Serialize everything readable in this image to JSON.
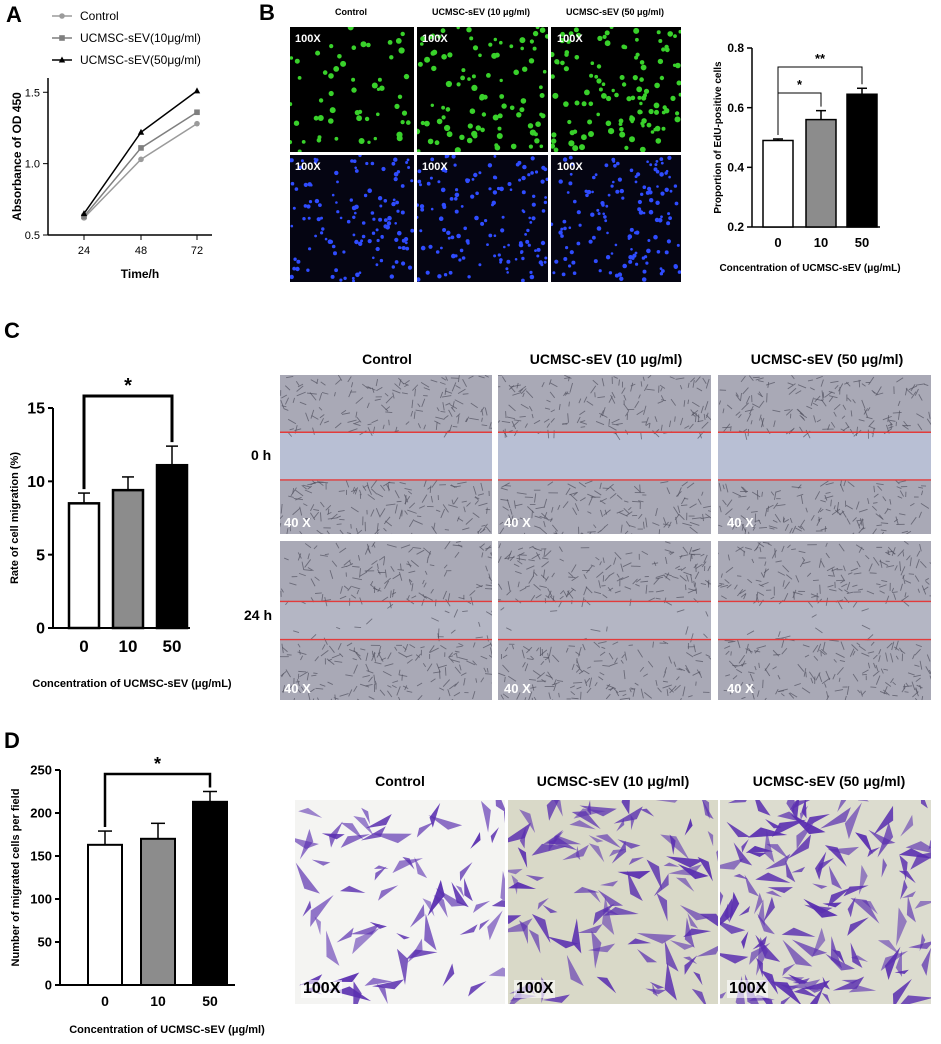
{
  "panels": {
    "A": "A",
    "B": "B",
    "C": "C",
    "D": "D"
  },
  "colors": {
    "black": "#000000",
    "gray_dark": "#7f7f7f",
    "gray_light": "#9b9b9b",
    "edu_green": "#39d12b",
    "dapi_blue": "#2f4cff",
    "crystal_violet": "#5a2fb0",
    "scratch_line": "#e23b3b"
  },
  "chart_data": [
    {
      "id": "A",
      "type": "line",
      "title": "",
      "xlabel": "Time/h",
      "ylabel": "Absorbance of OD 450",
      "x": [
        24,
        48,
        72
      ],
      "xticks": [
        "24",
        "48",
        "72"
      ],
      "ylim": [
        0.5,
        1.6
      ],
      "yticks": [
        "0.5",
        "1.0",
        "1.5"
      ],
      "legend_position": "top",
      "series": [
        {
          "name": "Control",
          "values": [
            0.62,
            1.03,
            1.28
          ],
          "marker": "circle",
          "color": "#9b9b9b"
        },
        {
          "name": "UCMSC-sEV(10μg/ml)",
          "values": [
            0.63,
            1.11,
            1.36
          ],
          "marker": "square",
          "color": "#7f7f7f"
        },
        {
          "name": "UCMSC-sEV(50μg/ml)",
          "values": [
            0.65,
            1.22,
            1.51
          ],
          "marker": "triangle",
          "color": "#000000"
        }
      ]
    },
    {
      "id": "B",
      "type": "bar",
      "title": "",
      "xlabel": "Concentration of UCMSC-sEV (μg/mL)",
      "ylabel": "Proportion of EdU-positive cells",
      "categories": [
        "0",
        "10",
        "50"
      ],
      "values": [
        0.49,
        0.56,
        0.645
      ],
      "errors": [
        0.005,
        0.03,
        0.02
      ],
      "bar_colors": [
        "#ffffff",
        "#8c8c8c",
        "#000000"
      ],
      "ylim": [
        0.2,
        0.8
      ],
      "yticks": [
        "0.2",
        "0.4",
        "0.6",
        "0.8"
      ],
      "significance": [
        {
          "from": 0,
          "to": 1,
          "label": "*"
        },
        {
          "from": 0,
          "to": 2,
          "label": "**"
        }
      ]
    },
    {
      "id": "C",
      "type": "bar",
      "title": "",
      "xlabel": "Concentration of UCMSC-sEV (μg/mL)",
      "ylabel": "Rate of cell migration (%)",
      "categories": [
        "0",
        "10",
        "50"
      ],
      "values": [
        8.5,
        9.4,
        11.1
      ],
      "errors": [
        0.7,
        0.9,
        1.3
      ],
      "bar_colors": [
        "#ffffff",
        "#8c8c8c",
        "#000000"
      ],
      "ylim": [
        0,
        15
      ],
      "yticks": [
        "0",
        "5",
        "10",
        "15"
      ],
      "significance": [
        {
          "from": 0,
          "to": 2,
          "label": "*"
        }
      ]
    },
    {
      "id": "D",
      "type": "bar",
      "title": "",
      "xlabel": "Concentration of UCMSC-sEV (μg/ml)",
      "ylabel": "Number of migrated cells per field",
      "categories": [
        "0",
        "10",
        "50"
      ],
      "values": [
        163,
        170,
        213
      ],
      "errors": [
        16,
        18,
        12
      ],
      "bar_colors": [
        "#ffffff",
        "#8c8c8c",
        "#000000"
      ],
      "ylim": [
        0,
        250
      ],
      "yticks": [
        "0",
        "50",
        "100",
        "150",
        "200",
        "250"
      ],
      "significance": [
        {
          "from": 0,
          "to": 2,
          "label": "*"
        }
      ]
    }
  ],
  "micrographs": {
    "B": {
      "headers": [
        "Control",
        "UCMSC-sEV (10 μg/ml)",
        "UCMSC-sEV (50 μg/ml)"
      ],
      "magnification": "100X"
    },
    "C": {
      "headers": [
        "Control",
        "UCMSC-sEV (10 μg/ml)",
        "UCMSC-sEV (50 μg/ml)"
      ],
      "rows": [
        "0 h",
        "24 h"
      ],
      "magnification": "40 X"
    },
    "D": {
      "headers": [
        "Control",
        "UCMSC-sEV (10 μg/ml)",
        "UCMSC-sEV (50 μg/ml)"
      ],
      "magnification": "100X"
    }
  }
}
